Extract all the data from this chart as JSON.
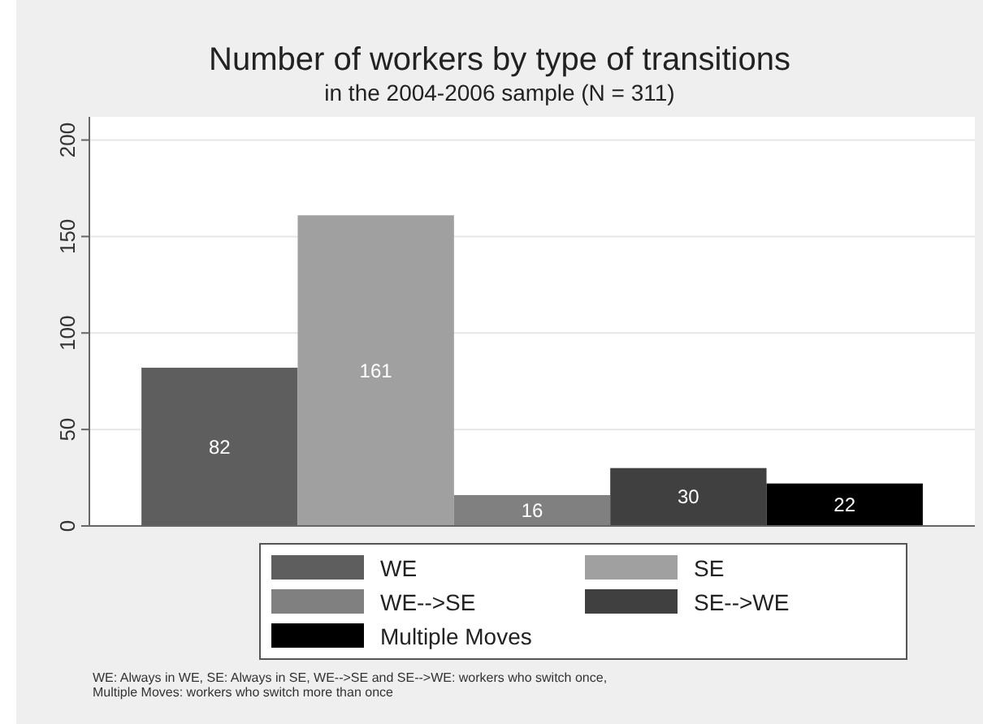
{
  "chart_data": {
    "type": "bar",
    "title": "Number of workers by type of transitions",
    "subtitle": "in the 2004-2006 sample (N = 311)",
    "categories": [
      null
    ],
    "series": [
      {
        "name": "WE",
        "color": "#5e5e5e",
        "values": [
          82
        ]
      },
      {
        "name": "SE",
        "color": "#a0a0a0",
        "values": [
          161
        ]
      },
      {
        "name": "WE-->SE",
        "color": "#808080",
        "values": [
          16
        ]
      },
      {
        "name": "SE-->WE",
        "color": "#404040",
        "values": [
          30
        ]
      },
      {
        "name": "Multiple Moves",
        "color": "#000000",
        "values": [
          22
        ]
      }
    ],
    "ylim": [
      0,
      212
    ],
    "yticks": [
      0,
      50,
      100,
      150,
      200
    ],
    "grid": "y",
    "legend": "bottom",
    "data_labels": true,
    "annotations": [
      "WE: Always in WE, SE: Always in SE, WE-->SE and SE-->WE: workers who switch once,",
      "Multiple Moves: workers who switch more than once"
    ]
  }
}
